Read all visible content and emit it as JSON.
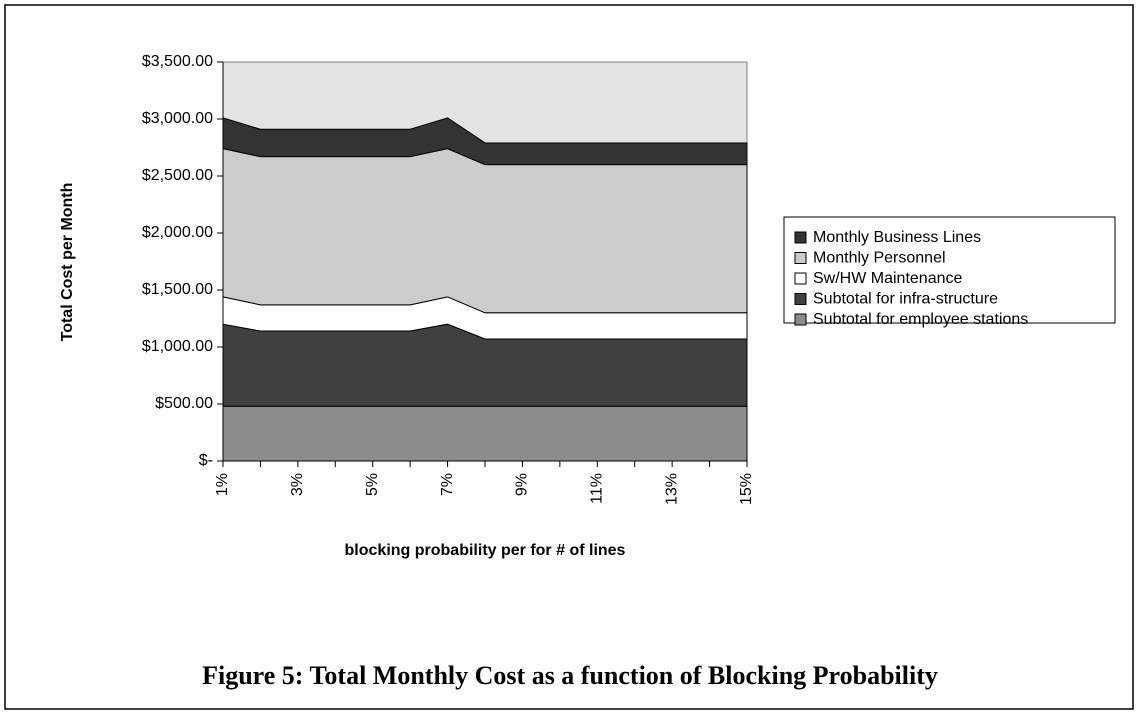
{
  "chart_data": {
    "type": "stacked_area",
    "title": "Figure 5: Total Monthly Cost as a function of Blocking Probability",
    "x_label": "blocking probability per for # of lines",
    "y_label": "Total Cost per Month",
    "categories": [
      "1%",
      null,
      "3%",
      null,
      "5%",
      null,
      "7%",
      null,
      "9%",
      null,
      "11%",
      null,
      "13%",
      null,
      "15%"
    ],
    "series": [
      {
        "name": "Subtotal for employee stations",
        "color": "#8c8c8c",
        "values": [
          480,
          480,
          480,
          480,
          480,
          480,
          480,
          480,
          480,
          480,
          480,
          480,
          480,
          480,
          480
        ]
      },
      {
        "name": "Subtotal for infra-structure",
        "color": "#404040",
        "values": [
          720,
          660,
          660,
          660,
          660,
          660,
          720,
          590,
          590,
          590,
          590,
          590,
          590,
          590,
          590
        ]
      },
      {
        "name": "Sw/HW Maintenance",
        "color": "#ffffff",
        "values": [
          240,
          230,
          230,
          230,
          230,
          230,
          240,
          230,
          230,
          230,
          230,
          230,
          230,
          230,
          230
        ]
      },
      {
        "name": "Monthly Personnel",
        "color": "#cccccc",
        "values": [
          1300,
          1300,
          1300,
          1300,
          1300,
          1300,
          1300,
          1300,
          1300,
          1300,
          1300,
          1300,
          1300,
          1300,
          1300
        ]
      },
      {
        "name": "Monthly Business Lines",
        "color": "#333333",
        "values": [
          270,
          240,
          240,
          240,
          240,
          240,
          270,
          190,
          190,
          190,
          190,
          190,
          190,
          190,
          190
        ]
      }
    ],
    "ylim": [
      0,
      3500
    ],
    "yticks": [
      {
        "value": 0,
        "label": "$-"
      },
      {
        "value": 500,
        "label": "$500.00"
      },
      {
        "value": 1000,
        "label": "$1,000.00"
      },
      {
        "value": 1500,
        "label": "$1,500.00"
      },
      {
        "value": 2000,
        "label": "$2,000.00"
      },
      {
        "value": 2500,
        "label": "$2,500.00"
      },
      {
        "value": 3000,
        "label": "$3,000.00"
      },
      {
        "value": 3500,
        "label": "$3,500.00"
      }
    ],
    "plot_background": "#e3e3e3",
    "legend": "right"
  }
}
